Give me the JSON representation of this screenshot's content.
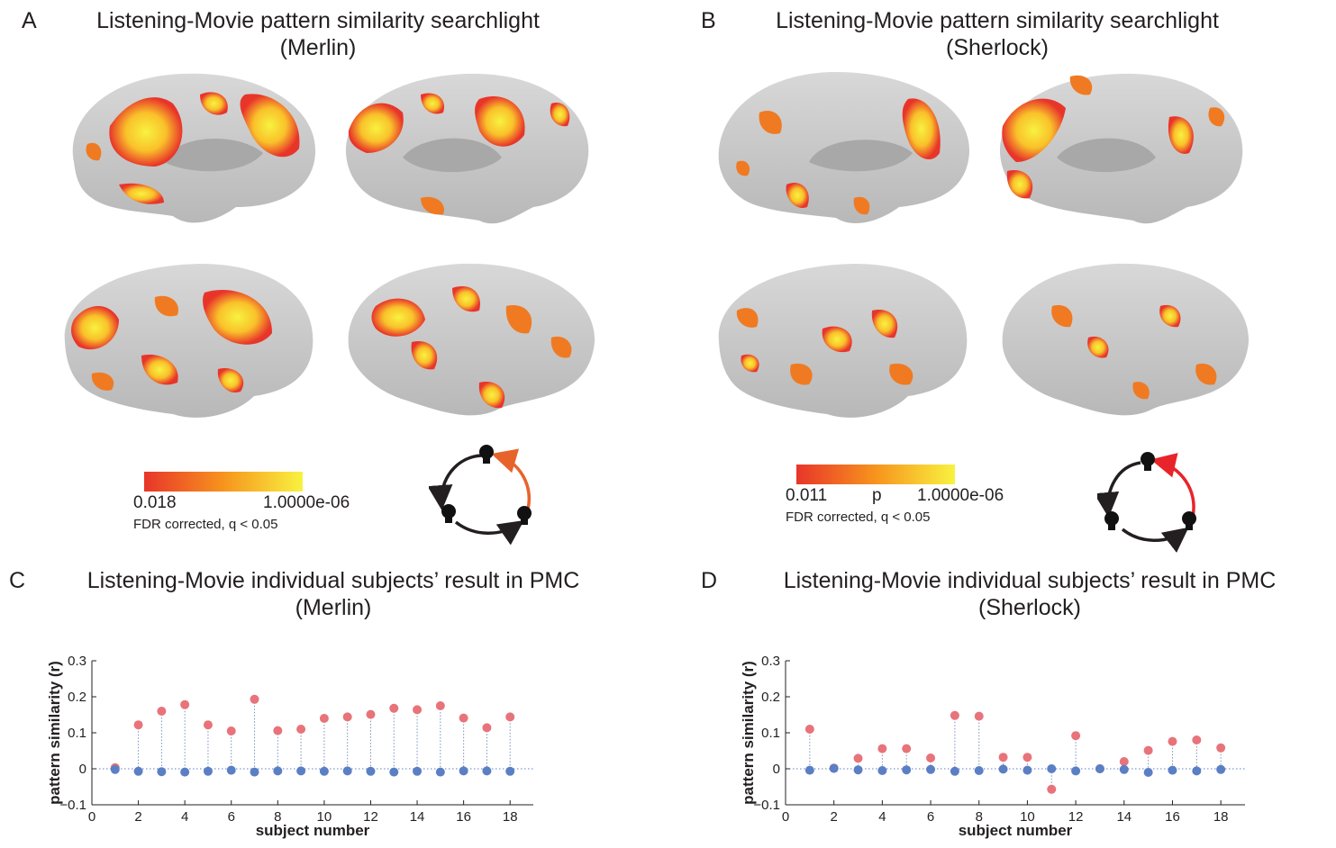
{
  "panels": {
    "A": {
      "letter": "A",
      "title_line1": "Listening-Movie pattern similarity searchlight",
      "title_line2": "(Merlin)"
    },
    "B": {
      "letter": "B",
      "title_line1": "Listening-Movie pattern similarity searchlight",
      "title_line2": "(Sherlock)"
    },
    "C": {
      "letter": "C",
      "title_line1": "Listening-Movie individual subjects’ result in PMC",
      "title_line2": "(Merlin)"
    },
    "D": {
      "letter": "D",
      "title_line1": "Listening-Movie individual subjects’ result in PMC",
      "title_line2": "(Sherlock)"
    }
  },
  "colorbars": {
    "A": {
      "min_label": "0.018",
      "mid_label": "",
      "max_label": "1.0000e-06",
      "note": "FDR corrected, q < 0.05",
      "colors": [
        "#e8352a",
        "#f7941d",
        "#f8f240"
      ]
    },
    "B": {
      "min_label": "0.011",
      "mid_label": "p",
      "max_label": "1.0000e-06",
      "note": "FDR corrected, q < 0.05",
      "colors": [
        "#e8352a",
        "#f7941d",
        "#f8f240"
      ]
    }
  },
  "cycle_arrows": {
    "A": {
      "highlight_color": "#e8632a"
    },
    "B": {
      "highlight_color": "#e8242a"
    }
  },
  "colors": {
    "brain_base": "#c9c9c9",
    "brain_dark": "#9d9d9d",
    "activation_low": "#e8352a",
    "activation_mid": "#f7941d",
    "activation_high": "#f8f240",
    "marker_red": "#e8737a",
    "marker_blue": "#5b7fc4"
  },
  "chart_data": [
    {
      "type": "scatter",
      "title": "Listening-Movie individual subjects’ result in PMC (Merlin)",
      "xlabel": "subject number",
      "ylabel": "pattern similarity (r)",
      "xlim": [
        0,
        19
      ],
      "ylim": [
        -0.1,
        0.3
      ],
      "xticks": [
        "0",
        "2",
        "4",
        "6",
        "8",
        "10",
        "12",
        "14",
        "16",
        "18"
      ],
      "yticks": [
        "−0.1",
        "0",
        "0.1",
        "0.2",
        "0.3"
      ],
      "x": [
        1,
        2,
        3,
        4,
        5,
        6,
        7,
        8,
        9,
        10,
        11,
        12,
        13,
        14,
        15,
        16,
        17,
        18
      ],
      "series": [
        {
          "color": "#e8737a",
          "values": [
            0.003,
            0.122,
            0.16,
            0.178,
            0.122,
            0.105,
            0.193,
            0.106,
            0.11,
            0.14,
            0.144,
            0.151,
            0.168,
            0.164,
            0.175,
            0.141,
            0.114,
            0.144
          ]
        },
        {
          "color": "#5b7fc4",
          "values": [
            -0.002,
            -0.007,
            -0.008,
            -0.009,
            -0.007,
            -0.004,
            -0.009,
            -0.006,
            -0.006,
            -0.007,
            -0.006,
            -0.007,
            -0.009,
            -0.007,
            -0.009,
            -0.006,
            -0.006,
            -0.007
          ]
        }
      ]
    },
    {
      "type": "scatter",
      "title": "Listening-Movie individual subjects’ result in PMC (Sherlock)",
      "xlabel": "subject number",
      "ylabel": "pattern similarity (r)",
      "xlim": [
        0,
        19
      ],
      "ylim": [
        -0.1,
        0.3
      ],
      "xticks": [
        "0",
        "2",
        "4",
        "6",
        "8",
        "10",
        "12",
        "14",
        "16",
        "18"
      ],
      "yticks": [
        "−0.1",
        "0",
        "0.1",
        "0.2",
        "0.3"
      ],
      "x": [
        1,
        2,
        3,
        4,
        5,
        6,
        7,
        8,
        9,
        10,
        11,
        12,
        13,
        14,
        15,
        16,
        17,
        18
      ],
      "series": [
        {
          "color": "#e8737a",
          "values": [
            0.11,
            0.002,
            0.029,
            0.056,
            0.056,
            0.03,
            0.148,
            0.146,
            0.032,
            0.032,
            -0.057,
            0.092,
            0.0,
            0.02,
            0.051,
            0.076,
            0.08,
            0.058
          ]
        },
        {
          "color": "#5b7fc4",
          "values": [
            -0.004,
            0.001,
            -0.003,
            -0.005,
            -0.003,
            -0.002,
            -0.007,
            -0.005,
            -0.001,
            -0.004,
            0.0,
            -0.006,
            0.0,
            -0.002,
            -0.01,
            -0.004,
            -0.006,
            -0.002
          ]
        }
      ]
    }
  ]
}
